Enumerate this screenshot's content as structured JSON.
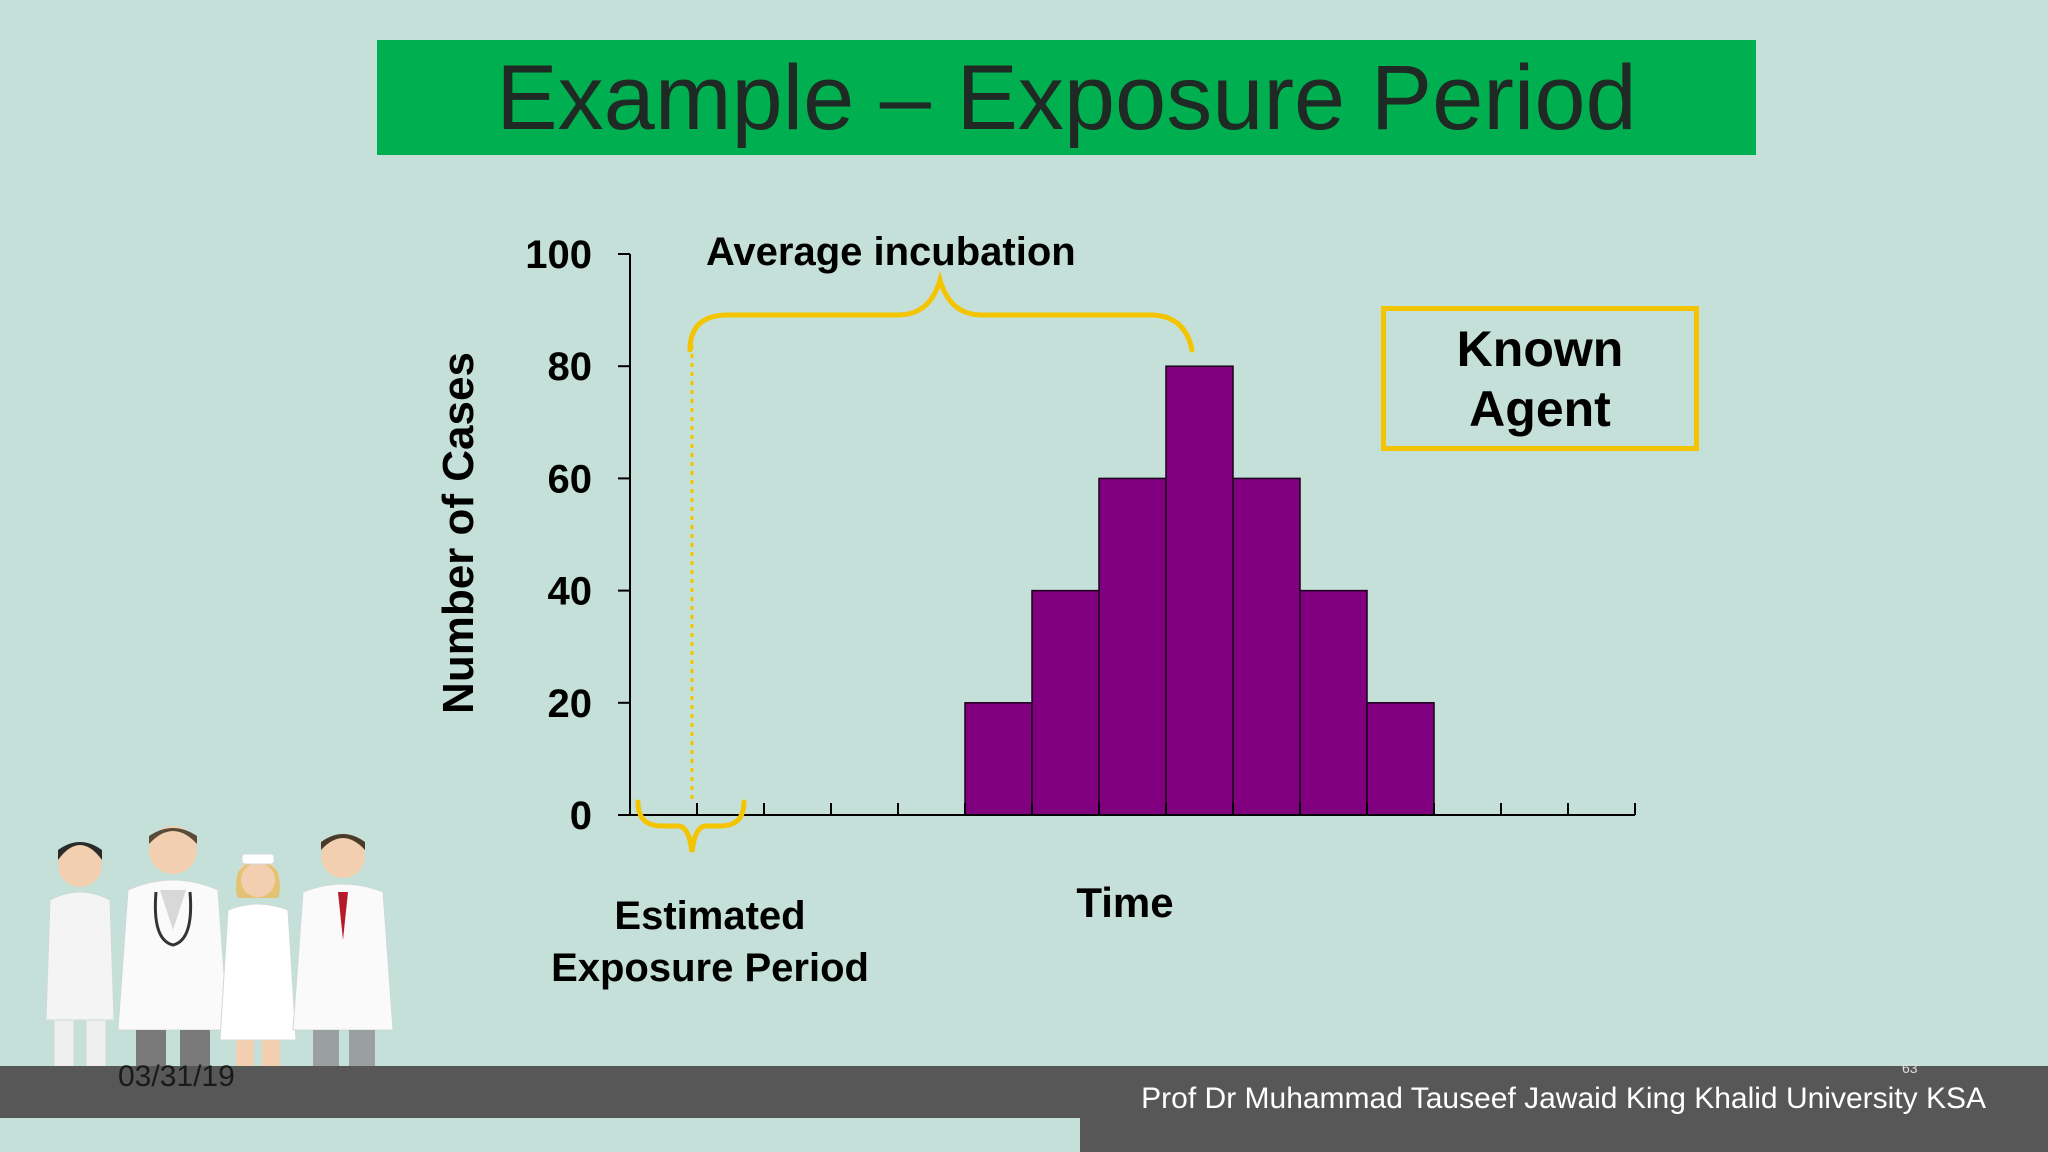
{
  "slide": {
    "title": "Example – Exposure Period",
    "date": "03/31/19",
    "credit": "Prof Dr Muhammad Tauseef Jawaid King Khalid University KSA",
    "page_number": "63"
  },
  "callout": {
    "line1": "Known",
    "line2": "Agent",
    "border_color": "#f5c400"
  },
  "annotations": {
    "incubation": "Average incubation",
    "exposure_line1": "Estimated",
    "exposure_line2": "Exposure Period",
    "brace_color": "#f5c400"
  },
  "illustration": {
    "name": "medical-staff-group"
  },
  "chart_data": {
    "type": "bar",
    "x_slots": 15,
    "bars": [
      {
        "slot": 5,
        "value": 20
      },
      {
        "slot": 6,
        "value": 40
      },
      {
        "slot": 7,
        "value": 60
      },
      {
        "slot": 8,
        "value": 80
      },
      {
        "slot": 9,
        "value": 60
      },
      {
        "slot": 10,
        "value": 40
      },
      {
        "slot": 11,
        "value": 20
      }
    ],
    "ylabel": "Number of Cases",
    "xlabel": "Time",
    "ylim": [
      0,
      100
    ],
    "yticks": [
      "0",
      "20",
      "40",
      "60",
      "80",
      "100"
    ],
    "bar_color": "#800080",
    "grid": false
  }
}
